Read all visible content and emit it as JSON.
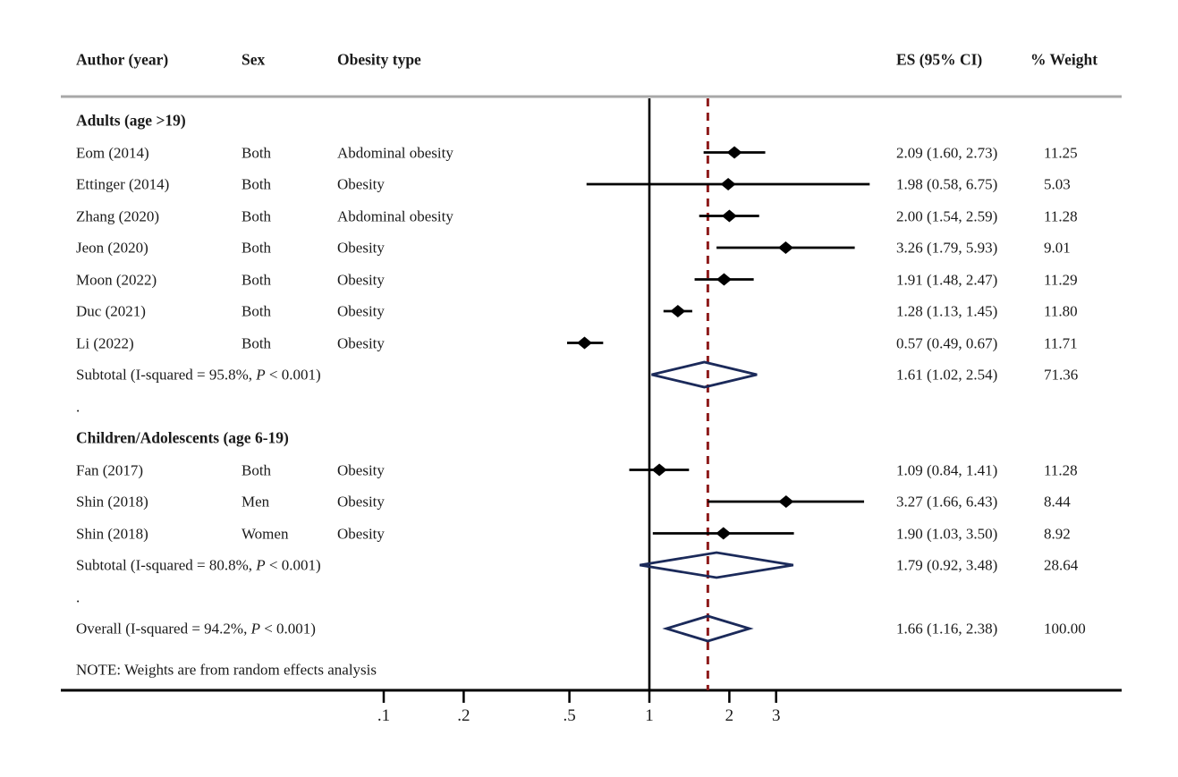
{
  "header": {
    "author": "Author (year)",
    "sex": "Sex",
    "obesity_type": "Obesity type",
    "es": "ES (95% CI)",
    "weight": "% Weight"
  },
  "note": "NOTE: Weights are from random effects analysis",
  "separator_dot": ".",
  "colors": {
    "text": "#1a1a1a",
    "axis": "#000000",
    "header_rule": "#a8a8a8",
    "null_line": "#000000",
    "overall_dashed_line": "#8e1b1b",
    "pooled_diamond": "#1b2a5a",
    "study_marker": "#000000"
  },
  "chart_data": {
    "type": "forest",
    "x_scale": "log10",
    "x_tick_labels": [
      ".1",
      ".2",
      ".5",
      "1",
      "2",
      "3"
    ],
    "x_tick_values": [
      0.1,
      0.2,
      0.5,
      1,
      2,
      3
    ],
    "null_value": 1,
    "dashed_line_at": 1.66,
    "legend_position": "none",
    "grid": false,
    "groups": [
      {
        "heading": "Adults (age >19)",
        "studies": [
          {
            "author": "Eom (2014)",
            "sex": "Both",
            "obesity_type": "Abdominal obesity",
            "es": 2.09,
            "ci_lo": 1.6,
            "ci_hi": 2.73,
            "es_label": "2.09 (1.60, 2.73)",
            "weight": "11.25"
          },
          {
            "author": "Ettinger (2014)",
            "sex": "Both",
            "obesity_type": "Obesity",
            "es": 1.98,
            "ci_lo": 0.58,
            "ci_hi": 6.75,
            "es_label": "1.98 (0.58, 6.75)",
            "weight": "5.03"
          },
          {
            "author": "Zhang (2020)",
            "sex": "Both",
            "obesity_type": "Abdominal obesity",
            "es": 2.0,
            "ci_lo": 1.54,
            "ci_hi": 2.59,
            "es_label": "2.00 (1.54, 2.59)",
            "weight": "11.28"
          },
          {
            "author": "Jeon (2020)",
            "sex": "Both",
            "obesity_type": "Obesity",
            "es": 3.26,
            "ci_lo": 1.79,
            "ci_hi": 5.93,
            "es_label": "3.26 (1.79, 5.93)",
            "weight": "9.01"
          },
          {
            "author": "Moon (2022)",
            "sex": "Both",
            "obesity_type": "Obesity",
            "es": 1.91,
            "ci_lo": 1.48,
            "ci_hi": 2.47,
            "es_label": "1.91 (1.48, 2.47)",
            "weight": "11.29"
          },
          {
            "author": "Duc (2021)",
            "sex": "Both",
            "obesity_type": "Obesity",
            "es": 1.28,
            "ci_lo": 1.13,
            "ci_hi": 1.45,
            "es_label": "1.28 (1.13, 1.45)",
            "weight": "11.80"
          },
          {
            "author": "Li (2022)",
            "sex": "Both",
            "obesity_type": "Obesity",
            "es": 0.57,
            "ci_lo": 0.49,
            "ci_hi": 0.67,
            "es_label": "0.57 (0.49, 0.67)",
            "weight": "11.71"
          }
        ],
        "subtotal": {
          "label": "Subtotal (I-squared = 95.8%, P < 0.001)",
          "es": 1.61,
          "ci_lo": 1.02,
          "ci_hi": 2.54,
          "es_label": "1.61 (1.02, 2.54)",
          "weight": "71.36"
        }
      },
      {
        "heading": "Children/Adolescents (age 6-19)",
        "studies": [
          {
            "author": "Fan (2017)",
            "sex": "Both",
            "obesity_type": "Obesity",
            "es": 1.09,
            "ci_lo": 0.84,
            "ci_hi": 1.41,
            "es_label": "1.09 (0.84, 1.41)",
            "weight": "11.28"
          },
          {
            "author": "Shin (2018)",
            "sex": "Men",
            "obesity_type": "Obesity",
            "es": 3.27,
            "ci_lo": 1.66,
            "ci_hi": 6.43,
            "es_label": "3.27 (1.66, 6.43)",
            "weight": "8.44"
          },
          {
            "author": "Shin (2018)",
            "sex": "Women",
            "obesity_type": "Obesity",
            "es": 1.9,
            "ci_lo": 1.03,
            "ci_hi": 3.5,
            "es_label": "1.90 (1.03, 3.50)",
            "weight": "8.92"
          }
        ],
        "subtotal": {
          "label": "Subtotal (I-squared = 80.8%, P < 0.001)",
          "es": 1.79,
          "ci_lo": 0.92,
          "ci_hi": 3.48,
          "es_label": "1.79 (0.92, 3.48)",
          "weight": "28.64"
        }
      }
    ],
    "overall": {
      "label": "Overall (I-squared = 94.2%, P < 0.001)",
      "es": 1.66,
      "ci_lo": 1.16,
      "ci_hi": 2.38,
      "es_label": "1.66 (1.16, 2.38)",
      "weight": "100.00"
    }
  }
}
